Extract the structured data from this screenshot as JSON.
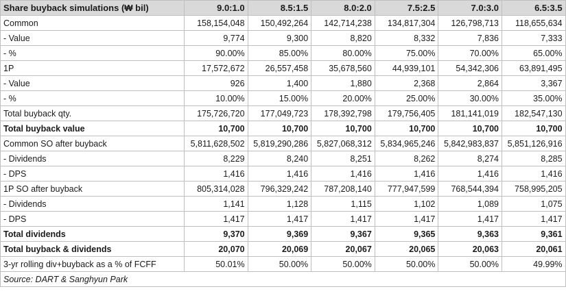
{
  "title": "Share buyback simulations (₩ bil)",
  "columns": [
    "9.0:1.0",
    "8.5:1.5",
    "8.0:2.0",
    "7.5:2.5",
    "7.0:3.0",
    "6.5:3.5"
  ],
  "rows": [
    {
      "label": "Common",
      "bold": false,
      "values": [
        "158,154,048",
        "150,492,264",
        "142,714,238",
        "134,817,304",
        "126,798,713",
        "118,655,634"
      ]
    },
    {
      "label": "- Value",
      "bold": false,
      "values": [
        "9,774",
        "9,300",
        "8,820",
        "8,332",
        "7,836",
        "7,333"
      ]
    },
    {
      "label": "- %",
      "bold": false,
      "values": [
        "90.00%",
        "85.00%",
        "80.00%",
        "75.00%",
        "70.00%",
        "65.00%"
      ]
    },
    {
      "label": "1P",
      "bold": false,
      "values": [
        "17,572,672",
        "26,557,458",
        "35,678,560",
        "44,939,101",
        "54,342,306",
        "63,891,495"
      ]
    },
    {
      "label": "- Value",
      "bold": false,
      "values": [
        "926",
        "1,400",
        "1,880",
        "2,368",
        "2,864",
        "3,367"
      ]
    },
    {
      "label": "- %",
      "bold": false,
      "values": [
        "10.00%",
        "15.00%",
        "20.00%",
        "25.00%",
        "30.00%",
        "35.00%"
      ]
    },
    {
      "label": "Total buyback qty.",
      "bold": false,
      "values": [
        "175,726,720",
        "177,049,723",
        "178,392,798",
        "179,756,405",
        "181,141,019",
        "182,547,130"
      ]
    },
    {
      "label": "Total buyback value",
      "bold": true,
      "values": [
        "10,700",
        "10,700",
        "10,700",
        "10,700",
        "10,700",
        "10,700"
      ]
    },
    {
      "label": "Common SO after buyback",
      "bold": false,
      "values": [
        "5,811,628,502",
        "5,819,290,286",
        "5,827,068,312",
        "5,834,965,246",
        "5,842,983,837",
        "5,851,126,916"
      ]
    },
    {
      "label": "- Dividends",
      "bold": false,
      "values": [
        "8,229",
        "8,240",
        "8,251",
        "8,262",
        "8,274",
        "8,285"
      ]
    },
    {
      "label": "- DPS",
      "bold": false,
      "values": [
        "1,416",
        "1,416",
        "1,416",
        "1,416",
        "1,416",
        "1,416"
      ]
    },
    {
      "label": "1P SO after buyback",
      "bold": false,
      "values": [
        "805,314,028",
        "796,329,242",
        "787,208,140",
        "777,947,599",
        "768,544,394",
        "758,995,205"
      ]
    },
    {
      "label": "- Dividends",
      "bold": false,
      "values": [
        "1,141",
        "1,128",
        "1,115",
        "1,102",
        "1,089",
        "1,075"
      ]
    },
    {
      "label": "- DPS",
      "bold": false,
      "values": [
        "1,417",
        "1,417",
        "1,417",
        "1,417",
        "1,417",
        "1,417"
      ]
    },
    {
      "label": "Total dividends",
      "bold": true,
      "values": [
        "9,370",
        "9,369",
        "9,367",
        "9,365",
        "9,363",
        "9,361"
      ]
    },
    {
      "label": "Total buyback & dividends",
      "bold": true,
      "values": [
        "20,070",
        "20,069",
        "20,067",
        "20,065",
        "20,063",
        "20,061"
      ]
    },
    {
      "label": "3-yr rolling div+buyback as a % of FCFF",
      "bold": false,
      "values": [
        "50.01%",
        "50.00%",
        "50.00%",
        "50.00%",
        "50.00%",
        "49.99%"
      ]
    }
  ],
  "source": "Source: DART & Sanghyun Park"
}
